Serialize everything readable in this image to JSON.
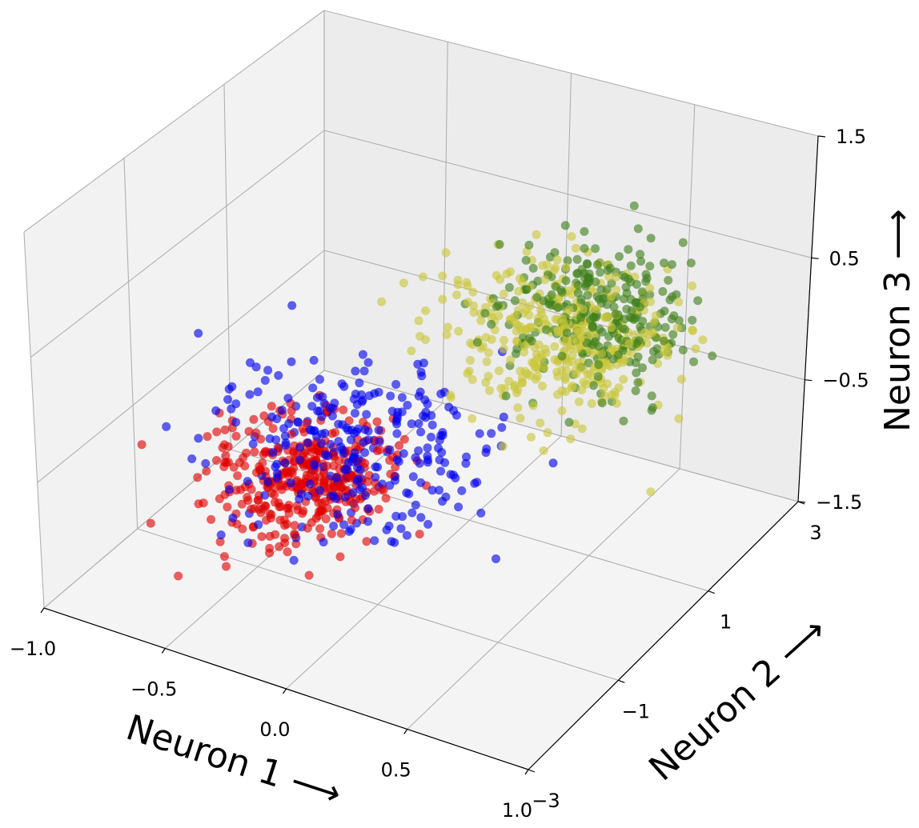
{
  "chart_data": {
    "type": "scatter",
    "projection": "3d",
    "grid": true,
    "xlabel": "Neuron 1 ⟶",
    "ylabel": "Neuron 2 ⟶",
    "zlabel": "Neuron 3 ⟶",
    "xlim": [
      -1.0,
      1.0
    ],
    "ylim": [
      -3,
      3
    ],
    "zlim": [
      -1.5,
      1.5
    ],
    "x_ticks": [
      "−1.0",
      "−0.5",
      "0.0",
      "0.5",
      "1.0"
    ],
    "x_tick_values": [
      -1.0,
      -0.5,
      0.0,
      0.5,
      1.0
    ],
    "y_ticks": [
      "−3",
      "−1",
      "1",
      "3"
    ],
    "y_tick_values": [
      -3,
      -1,
      1,
      3
    ],
    "z_ticks": [
      "−1.5",
      "−0.5",
      "0.5",
      "1.5"
    ],
    "z_tick_values": [
      -1.5,
      -0.5,
      0.5,
      1.5
    ],
    "series": [
      {
        "color": "#e00000",
        "description": "red cluster",
        "cluster": {
          "center": [
            -0.5,
            0.0,
            -1.1
          ],
          "spread": [
            0.16,
            0.55,
            0.16
          ],
          "count": 380
        }
      },
      {
        "color": "#0000ee",
        "description": "blue points",
        "cluster": {
          "center": [
            -0.3,
            0.1,
            -0.8
          ],
          "spread": [
            0.25,
            0.7,
            0.3
          ],
          "count": 280
        }
      },
      {
        "color": "#c9c63a",
        "description": "yellow cluster",
        "cluster": {
          "center": [
            0.45,
            0.6,
            0.35
          ],
          "spread": [
            0.2,
            0.45,
            0.25
          ],
          "count": 380
        }
      },
      {
        "color": "#3f7f1a",
        "description": "green cluster",
        "cluster": {
          "center": [
            0.55,
            0.9,
            0.55
          ],
          "spread": [
            0.18,
            0.45,
            0.25
          ],
          "count": 280
        }
      }
    ]
  }
}
